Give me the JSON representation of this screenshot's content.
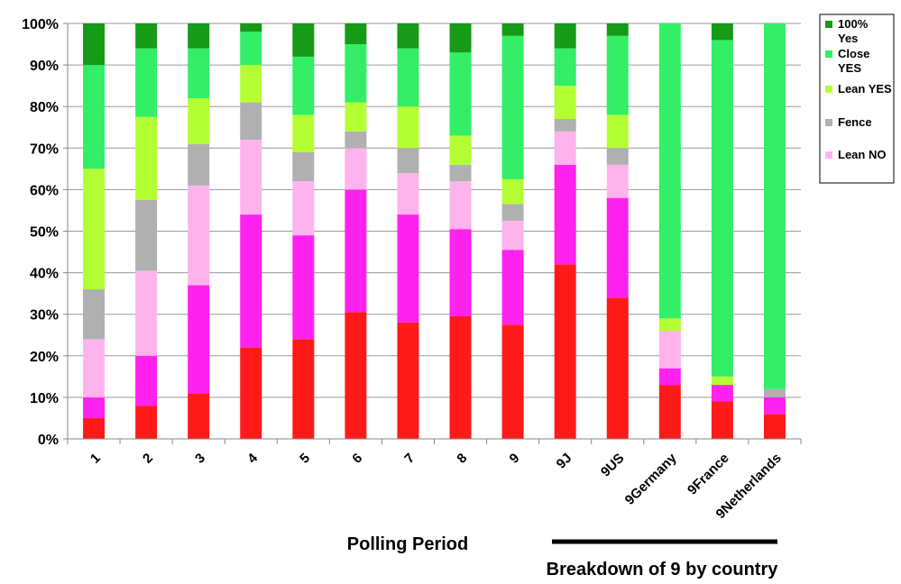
{
  "chart_data": {
    "type": "bar",
    "stacked": true,
    "percent": true,
    "categories": [
      "1",
      "2",
      "3",
      "4",
      "5",
      "6",
      "7",
      "8",
      "9",
      "9J",
      "9US",
      "9Germany",
      "9France",
      "9Netherlands"
    ],
    "series": [
      {
        "name": "",
        "color": "#ff1a1a",
        "values": [
          5,
          8,
          11,
          22,
          24,
          30.5,
          28,
          29.5,
          27.5,
          42,
          34,
          13,
          9,
          6
        ]
      },
      {
        "name": "",
        "color": "#ff22ee",
        "values": [
          5,
          12,
          26,
          32,
          25,
          29.5,
          26,
          21,
          18,
          24,
          24,
          4,
          4,
          4
        ]
      },
      {
        "name": "Lean NO",
        "color": "#ffb3ec",
        "values": [
          14,
          20.5,
          24,
          18,
          13,
          10,
          10,
          11.5,
          7,
          8,
          8,
          9,
          0,
          0
        ]
      },
      {
        "name": "Fence",
        "color": "#b0b0b0",
        "values": [
          12,
          17,
          10,
          9,
          7,
          4,
          6,
          4,
          4,
          3,
          4,
          0,
          0,
          2
        ]
      },
      {
        "name": "Lean YES",
        "color": "#b3ff33",
        "values": [
          29,
          20,
          11,
          9,
          9,
          7,
          10,
          7,
          6,
          8,
          8,
          3,
          2,
          0
        ]
      },
      {
        "name": "Close YES",
        "color": "#33ee66",
        "values": [
          25,
          16.5,
          12,
          8,
          14,
          14,
          14,
          20,
          34.5,
          9,
          19,
          71,
          81,
          88
        ]
      },
      {
        "name": "100% Yes",
        "color": "#179a17",
        "values": [
          10,
          6,
          6,
          2,
          8,
          5,
          6,
          7,
          3,
          6,
          3,
          0,
          4,
          0
        ]
      }
    ],
    "yaxis": {
      "min": 0,
      "max": 100,
      "step": 10,
      "tick_suffix": "%"
    },
    "legend_position": "top-right",
    "grid": true,
    "xlabel": "Polling Period",
    "annotation": "Breakdown of 9 by country"
  }
}
